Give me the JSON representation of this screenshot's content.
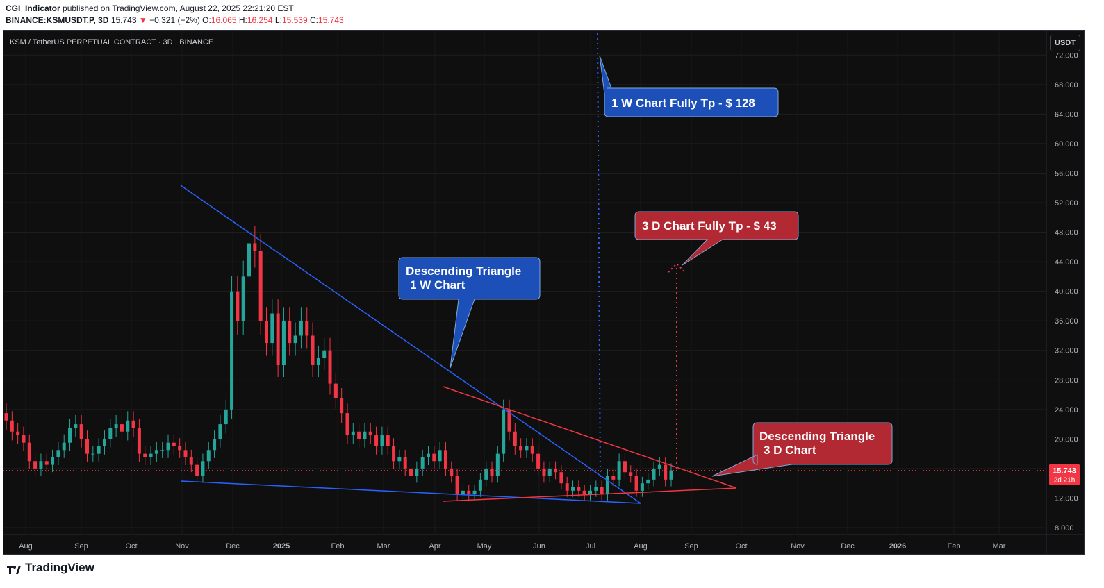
{
  "header": {
    "author": "CGI_Indicator",
    "published_text": "published on TradingView.com, August 22, 2025 22:21:20 EST",
    "symbol": "BINANCE:KSMUSDT.P, 3D",
    "last": "15.743",
    "change": "−0.321 (−2%)",
    "open_label": "O:",
    "open": "16.065",
    "high_label": "H:",
    "high": "16.254",
    "low_label": "L:",
    "low": "15.539",
    "close_label": "C:",
    "close": "15.743"
  },
  "chart": {
    "symbol_title": "KSM / TetherUS PERPETUAL CONTRACT · 3D · BINANCE",
    "currency_button": "USDT",
    "price_tag": "15.743",
    "countdown": "2d 21h"
  },
  "annotations": {
    "weekly_target": "1 W Chart Fully Tp - $ 128",
    "daily_target": "3 D Chart Fully Tp - $ 43",
    "weekly_triangle_line1": "Descending Triangle",
    "weekly_triangle_line2": "1 W Chart",
    "daily_triangle_line1": "Descending Triangle",
    "daily_triangle_line2": "3 D Chart"
  },
  "colors": {
    "up": "#26a69a",
    "down": "#f23645",
    "blue_line": "#2962ff",
    "red_line": "#f23645",
    "blue_box": "#1c4fb8",
    "red_box": "#b22833"
  },
  "footer": {
    "brand": "TradingView"
  },
  "chart_data": {
    "type": "candlestick",
    "title": "KSM / TetherUS PERPETUAL CONTRACT · 3D · BINANCE",
    "ylim": [
      8,
      74
    ],
    "y_ticks": [
      "72.000",
      "68.000",
      "64.000",
      "60.000",
      "56.000",
      "52.000",
      "48.000",
      "44.000",
      "40.000",
      "36.000",
      "32.000",
      "28.000",
      "24.000",
      "20.000",
      "16.000",
      "12.000",
      "8.000"
    ],
    "x_ticks": [
      "Aug",
      "Sep",
      "Oct",
      "Nov",
      "Dec",
      "2025",
      "Feb",
      "Mar",
      "Apr",
      "May",
      "Jun",
      "Jul",
      "Aug",
      "Sep",
      "Oct",
      "Nov",
      "Dec",
      "2026",
      "Feb",
      "Mar"
    ],
    "last_price": 15.743,
    "closes": [
      22.5,
      21.0,
      20.5,
      19.5,
      17.0,
      16.0,
      17.0,
      16.5,
      17.5,
      18.5,
      19.5,
      21.5,
      22.0,
      20.0,
      18.0,
      18.0,
      19.0,
      20.0,
      21.5,
      22.0,
      21.0,
      22.5,
      21.5,
      18.0,
      17.5,
      18.0,
      18.5,
      18.5,
      19.5,
      19.0,
      18.5,
      17.5,
      16.5,
      15.0,
      17.0,
      18.5,
      20.0,
      22.0,
      24.0,
      40.0,
      36.0,
      42.0,
      46.5,
      45.5,
      36.0,
      33.0,
      37.0,
      30.0,
      36.0,
      33.0,
      34.0,
      36.0,
      34.0,
      30.0,
      31.0,
      32.0,
      27.5,
      25.5,
      23.5,
      20.5,
      21.0,
      20.0,
      21.0,
      20.5,
      19.0,
      20.5,
      19.0,
      17.0,
      17.5,
      16.0,
      15.0,
      16.0,
      17.5,
      18.0,
      17.0,
      18.5,
      16.0,
      15.0,
      12.5,
      13.0,
      12.5,
      13.0,
      14.5,
      16.0,
      15.0,
      18.0,
      24.0,
      21.0,
      19.0,
      18.5,
      19.0,
      18.0,
      16.0,
      15.0,
      16.0,
      15.5,
      14.0,
      13.0,
      13.5,
      13.0,
      12.5,
      13.0,
      13.5,
      12.5,
      15.0,
      14.5,
      17.0,
      15.5,
      15.0,
      13.0,
      14.0,
      14.5,
      16.0,
      16.5,
      14.5,
      15.743
    ]
  }
}
